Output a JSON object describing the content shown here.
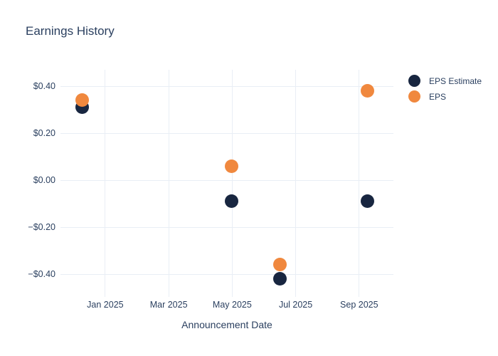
{
  "title": "Earnings History",
  "colors": {
    "text": "#2a3f5f",
    "grid": "#e9eef5",
    "background": "#ffffff",
    "eps_estimate": "#182640",
    "eps": "#f0883e"
  },
  "chart_data": {
    "type": "scatter",
    "title": "Earnings History",
    "xlabel": "Announcement Date",
    "ylabel": "",
    "grid": true,
    "legend_position": "right",
    "x_ticks": [
      {
        "label": "Jan 2025",
        "months_from_jan_2025": 0
      },
      {
        "label": "Mar 2025",
        "months_from_jan_2025": 2
      },
      {
        "label": "May 2025",
        "months_from_jan_2025": 4
      },
      {
        "label": "Jul 2025",
        "months_from_jan_2025": 6
      },
      {
        "label": "Sep 2025",
        "months_from_jan_2025": 8
      }
    ],
    "y_ticks": [
      {
        "label": "$0.40",
        "value": 0.4
      },
      {
        "label": "$0.20",
        "value": 0.2
      },
      {
        "label": "$0.00",
        "value": 0.0
      },
      {
        "label": "−$0.20",
        "value": -0.2
      },
      {
        "label": "−$0.40",
        "value": -0.4
      }
    ],
    "xlim_months_from_jan_2025": [
      -1.41,
      9.08
    ],
    "ylim": [
      -0.497,
      0.47
    ],
    "announcements": [
      {
        "approx_date": "Dec 2024",
        "months_from_jan_2025": -0.72
      },
      {
        "approx_date": "May 2025",
        "months_from_jan_2025": 3.97
      },
      {
        "approx_date": "Jun 2025",
        "months_from_jan_2025": 5.5
      },
      {
        "approx_date": "Sep 2025",
        "months_from_jan_2025": 8.27
      }
    ],
    "series": [
      {
        "name": "EPS Estimate",
        "color": "#182640",
        "values": [
          0.31,
          -0.09,
          -0.42,
          -0.09
        ]
      },
      {
        "name": "EPS",
        "color": "#f0883e",
        "values": [
          0.34,
          0.06,
          -0.36,
          0.38
        ]
      }
    ]
  }
}
